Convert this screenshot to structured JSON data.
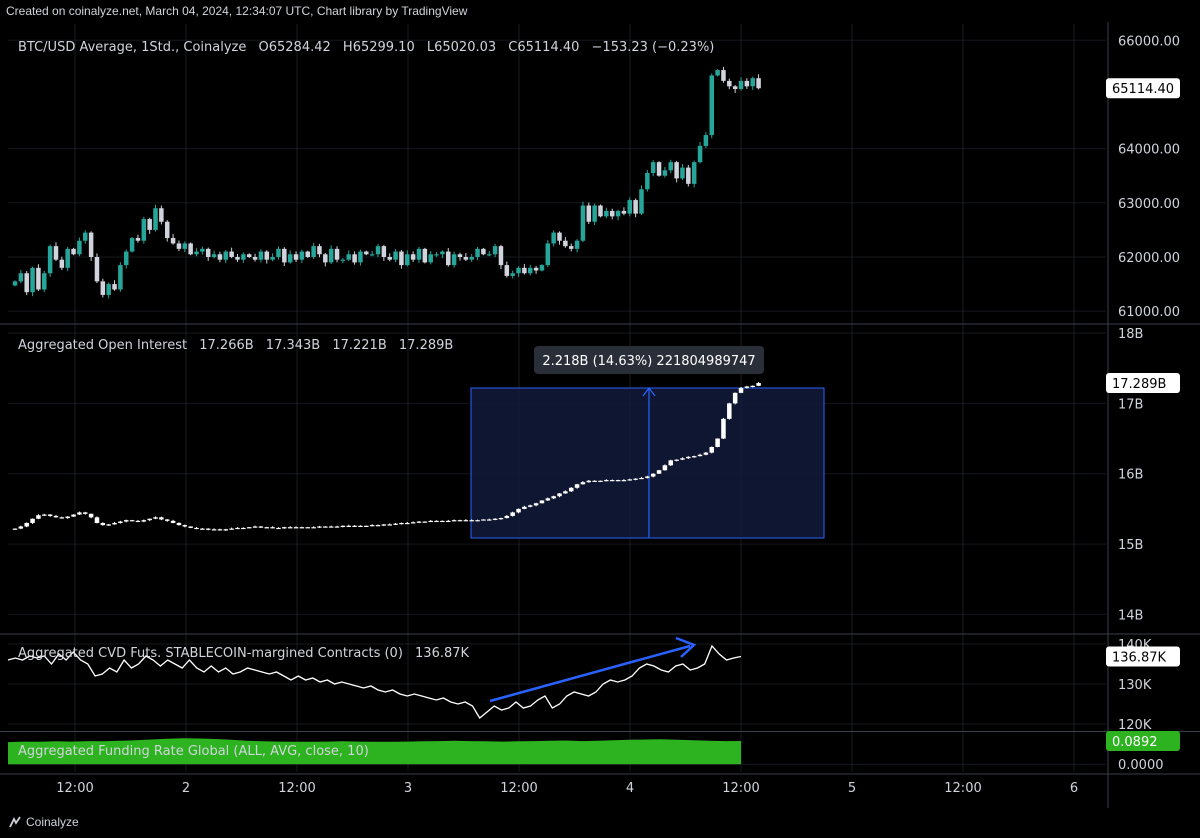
{
  "header": {
    "credit": "Created on coinalyze.net, March 04, 2024, 12:34:07 UTC, Chart library by TradingView"
  },
  "footer": {
    "brand": "Coinalyze"
  },
  "colors": {
    "up": "#26a69a",
    "down": "#d1d4dc",
    "grid": "#2a2e39",
    "accent": "#2962ff",
    "funding": "#2db31f"
  },
  "chart_data": [
    {
      "type": "candlestick",
      "panel": "price",
      "legend": {
        "name": "BTC/USD Average, 1Std., Coinalyze",
        "o_label": "O",
        "o": "65284.42",
        "h_label": "H",
        "h": "65299.10",
        "l_label": "L",
        "l": "65020.03",
        "c_label": "C",
        "c": "65114.40",
        "change": "−153.23 (−0.23%)"
      },
      "yticks": [
        "66000.00",
        "64000.00",
        "63000.00",
        "62000.00",
        "61000.00"
      ],
      "ytick_values": [
        66000,
        64000,
        63000,
        62000,
        61000
      ],
      "ylim": [
        60800,
        66300
      ],
      "last_value": "65114.40",
      "last_value_num": 65114.4,
      "close": [
        61550,
        61700,
        61350,
        61800,
        61400,
        61700,
        62200,
        61950,
        61800,
        62150,
        62050,
        62300,
        62450,
        62000,
        61550,
        61300,
        61500,
        61400,
        61850,
        62100,
        62350,
        62300,
        62700,
        62500,
        62900,
        62650,
        62350,
        62250,
        62150,
        62250,
        62050,
        62100,
        62150,
        62000,
        62050,
        61950,
        62100,
        62000,
        61950,
        62050,
        62000,
        61950,
        62100,
        61950,
        62000,
        62150,
        61900,
        62050,
        61950,
        62100,
        62000,
        62200,
        62050,
        61900,
        62150,
        61950,
        61950,
        62050,
        61900,
        62100,
        62050,
        62050,
        62200,
        62000,
        61950,
        62100,
        61850,
        62050,
        61950,
        62150,
        61900,
        62050,
        62050,
        62100,
        61850,
        62050,
        62000,
        61950,
        62000,
        62150,
        62050,
        62050,
        62200,
        61850,
        61650,
        61700,
        61800,
        61700,
        61800,
        61750,
        61850,
        62250,
        62450,
        62300,
        62200,
        62150,
        62300,
        62950,
        62650,
        62950,
        62750,
        62850,
        62750,
        62850,
        62800,
        63050,
        62800,
        63250,
        63550,
        63750,
        63500,
        63600,
        63750,
        63450,
        63650,
        63350,
        63750,
        64050,
        64250,
        65350,
        65450,
        65250,
        65150,
        65100,
        65250,
        65150,
        65300,
        65114.4
      ]
    },
    {
      "type": "candlestick",
      "panel": "open-interest",
      "legend": {
        "name": "Aggregated Open Interest",
        "o": "17.266B",
        "h": "17.343B",
        "l": "17.221B",
        "c": "17.289B"
      },
      "yticks": [
        "18B",
        "17B",
        "16B",
        "15B",
        "14B"
      ],
      "ytick_values": [
        18,
        17,
        16,
        15,
        14
      ],
      "ylim": [
        13.75,
        18.1
      ],
      "last_value": "17.289B",
      "last_value_num": 17.289,
      "close": [
        15.22,
        15.25,
        15.3,
        15.36,
        15.41,
        15.42,
        15.4,
        15.38,
        15.37,
        15.39,
        15.42,
        15.45,
        15.43,
        15.38,
        15.3,
        15.27,
        15.28,
        15.3,
        15.32,
        15.34,
        15.33,
        15.32,
        15.34,
        15.36,
        15.38,
        15.35,
        15.33,
        15.3,
        15.27,
        15.25,
        15.23,
        15.22,
        15.22,
        15.21,
        15.21,
        15.2,
        15.21,
        15.22,
        15.23,
        15.23,
        15.24,
        15.25,
        15.24,
        15.24,
        15.23,
        15.23,
        15.24,
        15.24,
        15.24,
        15.24,
        15.24,
        15.24,
        15.25,
        15.25,
        15.25,
        15.25,
        15.26,
        15.26,
        15.26,
        15.26,
        15.26,
        15.27,
        15.27,
        15.28,
        15.28,
        15.29,
        15.3,
        15.3,
        15.31,
        15.32,
        15.32,
        15.33,
        15.33,
        15.33,
        15.33,
        15.34,
        15.34,
        15.34,
        15.34,
        15.34,
        15.35,
        15.35,
        15.36,
        15.37,
        15.4,
        15.45,
        15.5,
        15.53,
        15.55,
        15.58,
        15.62,
        15.65,
        15.68,
        15.72,
        15.75,
        15.8,
        15.85,
        15.88,
        15.9,
        15.9,
        15.9,
        15.91,
        15.91,
        15.91,
        15.91,
        15.92,
        15.93,
        15.94,
        15.96,
        16.0,
        16.05,
        16.12,
        16.19,
        16.2,
        16.22,
        16.24,
        16.25,
        16.27,
        16.3,
        16.38,
        16.5,
        16.78,
        17.0,
        17.15,
        17.22,
        17.24,
        17.25,
        17.289
      ]
    },
    {
      "type": "line",
      "panel": "cvd",
      "legend": {
        "name": "Aggregated CVD Futs. STABLECOIN-margined Contracts (0)",
        "value": "136.87K"
      },
      "yticks": [
        "140K",
        "130K",
        "120K"
      ],
      "ytick_values": [
        140,
        130,
        120
      ],
      "ylim": [
        118.5,
        142
      ],
      "last_value": "136.87K",
      "last_value_num": 136.87,
      "values": [
        136,
        136.5,
        136,
        137,
        136.5,
        137,
        135,
        137.5,
        136,
        138,
        136,
        135,
        132,
        132.5,
        134,
        133,
        136,
        134,
        135,
        137,
        136,
        134.5,
        136,
        135,
        134,
        136,
        134,
        133,
        134.5,
        133,
        134,
        132.5,
        133,
        134,
        133.5,
        133,
        132.5,
        133,
        132,
        131,
        132,
        131,
        131.5,
        130.5,
        131,
        130,
        130.5,
        130,
        129.5,
        129,
        129.5,
        128.5,
        128,
        128.5,
        127.5,
        127,
        127.5,
        127,
        126.5,
        126,
        126.5,
        125.5,
        125,
        125.5,
        124.5,
        121.5,
        123,
        124.5,
        123.5,
        124,
        125.5,
        124,
        124.5,
        126,
        127,
        124,
        125,
        127,
        128,
        127.5,
        127,
        128,
        130,
        131,
        130.5,
        131,
        132,
        134,
        135,
        134.5,
        133.5,
        133,
        134.5,
        135,
        133.5,
        134,
        135,
        139.5,
        137.5,
        136,
        136.5,
        136.87
      ],
      "annotation": "trend-arrow"
    },
    {
      "type": "area",
      "panel": "funding",
      "legend": {
        "name": "Aggregated Funding Rate Global (ALL, AVG, close, 10)"
      },
      "yticks": [
        "0.0000"
      ],
      "ytick_values": [
        0
      ],
      "ylim": [
        -0.03,
        0.12
      ],
      "last_value": "0.0892",
      "last_value_num": 0.0892,
      "values": [
        0.085,
        0.087,
        0.086,
        0.088,
        0.087,
        0.089,
        0.088,
        0.09,
        0.092,
        0.095,
        0.098,
        0.1,
        0.099,
        0.097,
        0.094,
        0.09,
        0.088,
        0.087,
        0.086,
        0.086,
        0.087,
        0.088,
        0.087,
        0.086,
        0.086,
        0.087,
        0.088,
        0.089,
        0.09,
        0.089,
        0.088,
        0.087,
        0.088,
        0.089,
        0.09,
        0.091,
        0.089,
        0.09,
        0.092,
        0.094,
        0.095,
        0.096,
        0.094,
        0.092,
        0.09,
        0.089,
        0.0892
      ]
    }
  ],
  "x_axis": {
    "ticks": [
      {
        "label": "12:00",
        "pos": 75
      },
      {
        "label": "2",
        "pos": 186
      },
      {
        "label": "12:00",
        "pos": 297
      },
      {
        "label": "3",
        "pos": 408
      },
      {
        "label": "12:00",
        "pos": 519
      },
      {
        "label": "4",
        "pos": 630
      },
      {
        "label": "12:00",
        "pos": 741
      },
      {
        "label": "5",
        "pos": 852
      },
      {
        "label": "12:00",
        "pos": 963
      },
      {
        "label": "6",
        "pos": 1074
      }
    ]
  },
  "measure": {
    "label": "2.218B (14.63%) 221804989747"
  }
}
